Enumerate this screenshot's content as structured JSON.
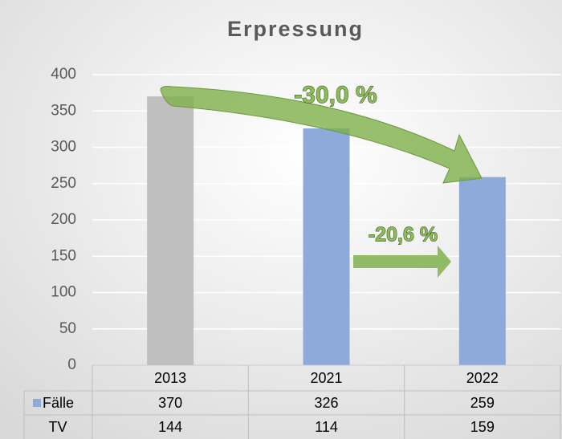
{
  "chart_data": {
    "type": "bar",
    "title": "Erpressung",
    "categories": [
      "2013",
      "2021",
      "2022"
    ],
    "series": [
      {
        "name": "Fälle",
        "color": "#8eaadb",
        "colors": [
          "#bfbfbf",
          "#8eaadb",
          "#8eaadb"
        ],
        "values": [
          370,
          326,
          259
        ]
      }
    ],
    "data_table": [
      {
        "name": "TV",
        "values": [
          144,
          114,
          159
        ]
      }
    ],
    "annotations": [
      "-30,0 %",
      "-20,6 %"
    ],
    "ylim": [
      0,
      400
    ],
    "yticks": [
      0,
      50,
      100,
      150,
      200,
      250,
      300,
      350,
      400
    ],
    "grid": true
  }
}
